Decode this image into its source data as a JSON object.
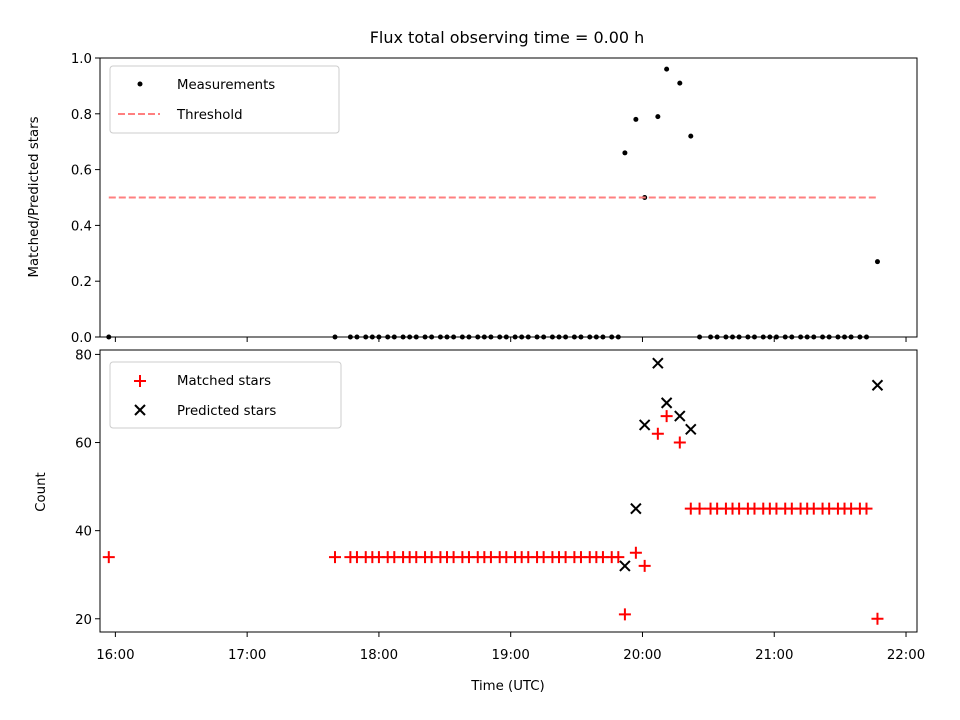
{
  "chart_data": {
    "title": "Flux total observing time = 0.00 h",
    "xlabel": "Time (UTC)",
    "x_unit": "hours UTC",
    "xlim": [
      "15:53",
      "22:05"
    ],
    "x_ticks": [
      "16:00",
      "17:00",
      "18:00",
      "19:00",
      "20:00",
      "21:00",
      "22:00"
    ],
    "panels": [
      {
        "type": "scatter",
        "ylabel": "Matched/Predicted stars",
        "ylim": [
          0.0,
          1.0
        ],
        "y_ticks": [
          "0.0",
          "0.2",
          "0.4",
          "0.6",
          "0.8",
          "1.0"
        ],
        "legend": {
          "placement": "upper-left"
        },
        "series": [
          {
            "name": "Measurements",
            "marker": "dot",
            "color": "#000000",
            "x": [
              "15:57",
              "17:40",
              "17:47",
              "17:50",
              "17:54",
              "17:57",
              "18:00",
              "18:04",
              "18:07",
              "18:11",
              "18:14",
              "18:17",
              "18:21",
              "18:24",
              "18:28",
              "18:31",
              "18:34",
              "18:38",
              "18:41",
              "18:45",
              "18:48",
              "18:51",
              "18:55",
              "18:58",
              "19:02",
              "19:05",
              "19:08",
              "19:12",
              "19:15",
              "19:19",
              "19:22",
              "19:25",
              "19:29",
              "19:32",
              "19:36",
              "19:39",
              "19:42",
              "19:46",
              "19:49",
              "19:52",
              "19:57",
              "20:01",
              "20:07",
              "20:11",
              "20:17",
              "20:22",
              "20:26",
              "20:31",
              "20:34",
              "20:38",
              "20:41",
              "20:44",
              "20:48",
              "20:51",
              "20:55",
              "20:58",
              "21:01",
              "21:05",
              "21:08",
              "21:12",
              "21:15",
              "21:18",
              "21:22",
              "21:25",
              "21:29",
              "21:32",
              "21:35",
              "21:39",
              "21:42",
              "21:47"
            ],
            "y": [
              0.0,
              0.0,
              0.0,
              0.0,
              0.0,
              0.0,
              0.0,
              0.0,
              0.0,
              0.0,
              0.0,
              0.0,
              0.0,
              0.0,
              0.0,
              0.0,
              0.0,
              0.0,
              0.0,
              0.0,
              0.0,
              0.0,
              0.0,
              0.0,
              0.0,
              0.0,
              0.0,
              0.0,
              0.0,
              0.0,
              0.0,
              0.0,
              0.0,
              0.0,
              0.0,
              0.0,
              0.0,
              0.0,
              0.0,
              0.66,
              0.78,
              0.5,
              0.79,
              0.96,
              0.91,
              0.72,
              0.0,
              0.0,
              0.0,
              0.0,
              0.0,
              0.0,
              0.0,
              0.0,
              0.0,
              0.0,
              0.0,
              0.0,
              0.0,
              0.0,
              0.0,
              0.0,
              0.0,
              0.0,
              0.0,
              0.0,
              0.0,
              0.0,
              0.0,
              0.27
            ]
          },
          {
            "name": "Threshold",
            "type": "line",
            "style": "dashed",
            "color": "#ff7f7f",
            "x": [
              "15:57",
              "21:47"
            ],
            "y": [
              0.5,
              0.5
            ]
          }
        ]
      },
      {
        "type": "scatter",
        "ylabel": "Count",
        "ylim": [
          17,
          81
        ],
        "y_ticks": [
          "20",
          "40",
          "60",
          "80"
        ],
        "legend": {
          "placement": "upper-left"
        },
        "series": [
          {
            "name": "Matched stars",
            "marker": "plus",
            "color": "#ff0000",
            "x": [
              "15:57",
              "17:40",
              "17:47",
              "17:50",
              "17:54",
              "17:57",
              "18:00",
              "18:04",
              "18:07",
              "18:11",
              "18:14",
              "18:17",
              "18:21",
              "18:24",
              "18:28",
              "18:31",
              "18:34",
              "18:38",
              "18:41",
              "18:45",
              "18:48",
              "18:51",
              "18:55",
              "18:58",
              "19:02",
              "19:05",
              "19:08",
              "19:12",
              "19:15",
              "19:19",
              "19:22",
              "19:25",
              "19:29",
              "19:32",
              "19:36",
              "19:39",
              "19:42",
              "19:46",
              "19:49",
              "19:52",
              "19:57",
              "20:01",
              "20:07",
              "20:11",
              "20:17",
              "20:22",
              "20:26",
              "20:31",
              "20:34",
              "20:38",
              "20:41",
              "20:44",
              "20:48",
              "20:51",
              "20:55",
              "20:58",
              "21:01",
              "21:05",
              "21:08",
              "21:12",
              "21:15",
              "21:18",
              "21:22",
              "21:25",
              "21:29",
              "21:32",
              "21:35",
              "21:39",
              "21:42",
              "21:47"
            ],
            "y": [
              34,
              34,
              34,
              34,
              34,
              34,
              34,
              34,
              34,
              34,
              34,
              34,
              34,
              34,
              34,
              34,
              34,
              34,
              34,
              34,
              34,
              34,
              34,
              34,
              34,
              34,
              34,
              34,
              34,
              34,
              34,
              34,
              34,
              34,
              34,
              34,
              34,
              34,
              34,
              21,
              35,
              32,
              62,
              66,
              60,
              45,
              45,
              45,
              45,
              45,
              45,
              45,
              45,
              45,
              45,
              45,
              45,
              45,
              45,
              45,
              45,
              45,
              45,
              45,
              45,
              45,
              45,
              45,
              45,
              20
            ]
          },
          {
            "name": "Predicted stars",
            "marker": "x",
            "color": "#000000",
            "x": [
              "19:52",
              "19:57",
              "20:01",
              "20:07",
              "20:11",
              "20:17",
              "20:22",
              "21:47"
            ],
            "y": [
              32,
              45,
              64,
              78,
              69,
              66,
              63,
              73
            ]
          }
        ]
      }
    ]
  }
}
